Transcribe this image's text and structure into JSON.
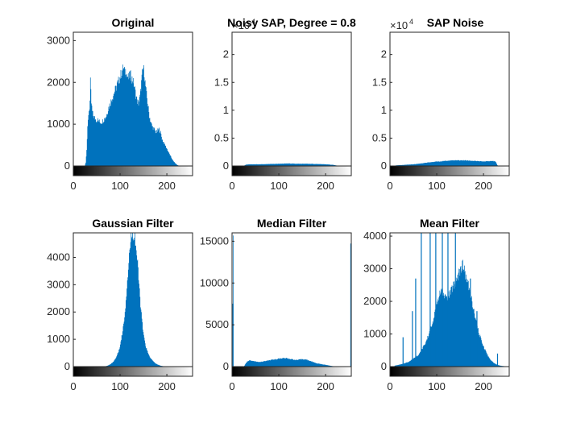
{
  "figure": {
    "background": "#ffffff",
    "bar_color": "#0072BD",
    "axis_color": "#262626"
  },
  "chart_data": [
    {
      "type": "bar",
      "title": "Original",
      "xlim": [
        0,
        255
      ],
      "ylim": [
        0,
        3200
      ],
      "xticks": [
        0,
        100,
        200
      ],
      "yticks": [
        0,
        1000,
        2000,
        3000
      ],
      "x_exponent": "",
      "y_exponent": "",
      "anchors": [
        [
          0,
          0
        ],
        [
          24,
          0
        ],
        [
          26,
          80
        ],
        [
          28,
          400
        ],
        [
          30,
          900
        ],
        [
          32,
          1250
        ],
        [
          34,
          1400
        ],
        [
          35,
          1550
        ],
        [
          36,
          2000
        ],
        [
          37,
          1750
        ],
        [
          38,
          1500
        ],
        [
          40,
          1300
        ],
        [
          42,
          1200
        ],
        [
          45,
          1150
        ],
        [
          48,
          1100
        ],
        [
          52,
          1100
        ],
        [
          56,
          1050
        ],
        [
          60,
          1050
        ],
        [
          64,
          1100
        ],
        [
          70,
          1200
        ],
        [
          75,
          1400
        ],
        [
          80,
          1550
        ],
        [
          85,
          1700
        ],
        [
          90,
          1850
        ],
        [
          95,
          2000
        ],
        [
          100,
          2150
        ],
        [
          103,
          2250
        ],
        [
          106,
          2350
        ],
        [
          109,
          2250
        ],
        [
          112,
          2300
        ],
        [
          115,
          2150
        ],
        [
          118,
          2100
        ],
        [
          121,
          2200
        ],
        [
          124,
          2100
        ],
        [
          127,
          2050
        ],
        [
          130,
          1900
        ],
        [
          133,
          1700
        ],
        [
          136,
          1550
        ],
        [
          139,
          1500
        ],
        [
          142,
          1650
        ],
        [
          145,
          2000
        ],
        [
          147,
          2200
        ],
        [
          149,
          2350
        ],
        [
          151,
          2250
        ],
        [
          153,
          2000
        ],
        [
          156,
          1700
        ],
        [
          159,
          1450
        ],
        [
          162,
          1200
        ],
        [
          165,
          1050
        ],
        [
          168,
          950
        ],
        [
          171,
          900
        ],
        [
          174,
          850
        ],
        [
          177,
          800
        ],
        [
          180,
          850
        ],
        [
          183,
          880
        ],
        [
          186,
          800
        ],
        [
          189,
          650
        ],
        [
          193,
          550
        ],
        [
          198,
          450
        ],
        [
          203,
          330
        ],
        [
          208,
          220
        ],
        [
          213,
          120
        ],
        [
          218,
          60
        ],
        [
          222,
          20
        ],
        [
          226,
          5
        ],
        [
          230,
          0
        ],
        [
          255,
          0
        ]
      ]
    },
    {
      "type": "bar",
      "title": "Noisy SAP, Degree = 0.8",
      "xlim": [
        0,
        255
      ],
      "ylim": [
        0,
        2.4
      ],
      "xticks": [
        0,
        100,
        200
      ],
      "yticks": [
        0,
        0.5,
        1,
        1.5,
        2
      ],
      "ytick_labels": [
        "0",
        "0.5",
        "1",
        "1.5",
        "2"
      ],
      "x_exponent": "",
      "y_exponent": "4",
      "anchors": [
        [
          0,
          0
        ],
        [
          22,
          0
        ],
        [
          26,
          0.01
        ],
        [
          30,
          0.025
        ],
        [
          40,
          0.03
        ],
        [
          60,
          0.03
        ],
        [
          80,
          0.035
        ],
        [
          100,
          0.04
        ],
        [
          120,
          0.045
        ],
        [
          140,
          0.04
        ],
        [
          160,
          0.04
        ],
        [
          180,
          0.035
        ],
        [
          200,
          0.03
        ],
        [
          215,
          0.02
        ],
        [
          225,
          0.005
        ],
        [
          230,
          0
        ],
        [
          255,
          0
        ]
      ]
    },
    {
      "type": "bar",
      "title": "SAP Noise",
      "xlim": [
        0,
        255
      ],
      "ylim": [
        0,
        2.4
      ],
      "xticks": [
        0,
        100,
        200
      ],
      "yticks": [
        0,
        0.5,
        1,
        1.5,
        2
      ],
      "ytick_labels": [
        "0",
        "0.5",
        "1",
        "1.5",
        "2"
      ],
      "x_exponent": "",
      "y_exponent": "4",
      "anchors": [
        [
          0,
          0
        ],
        [
          8,
          0
        ],
        [
          12,
          0.01
        ],
        [
          20,
          0.015
        ],
        [
          30,
          0.02
        ],
        [
          40,
          0.025
        ],
        [
          50,
          0.03
        ],
        [
          60,
          0.04
        ],
        [
          70,
          0.05
        ],
        [
          80,
          0.06
        ],
        [
          90,
          0.07
        ],
        [
          100,
          0.08
        ],
        [
          110,
          0.085
        ],
        [
          120,
          0.09
        ],
        [
          130,
          0.1
        ],
        [
          140,
          0.1
        ],
        [
          150,
          0.1
        ],
        [
          160,
          0.1
        ],
        [
          170,
          0.095
        ],
        [
          180,
          0.09
        ],
        [
          190,
          0.085
        ],
        [
          200,
          0.08
        ],
        [
          210,
          0.085
        ],
        [
          218,
          0.09
        ],
        [
          225,
          0.08
        ],
        [
          230,
          0
        ],
        [
          255,
          0
        ]
      ]
    },
    {
      "type": "bar",
      "title": "Gaussian Filter",
      "xlim": [
        0,
        255
      ],
      "ylim": [
        0,
        4900
      ],
      "xticks": [
        0,
        100,
        200
      ],
      "yticks": [
        0,
        1000,
        2000,
        3000,
        4000
      ],
      "x_exponent": "",
      "y_exponent": "",
      "anchors": [
        [
          0,
          0
        ],
        [
          60,
          0
        ],
        [
          70,
          20
        ],
        [
          75,
          50
        ],
        [
          80,
          100
        ],
        [
          85,
          180
        ],
        [
          90,
          300
        ],
        [
          95,
          500
        ],
        [
          100,
          800
        ],
        [
          105,
          1300
        ],
        [
          110,
          2000
        ],
        [
          113,
          2700
        ],
        [
          116,
          3400
        ],
        [
          119,
          4100
        ],
        [
          122,
          4600
        ],
        [
          125,
          4900
        ],
        [
          128,
          4900
        ],
        [
          131,
          4750
        ],
        [
          134,
          4300
        ],
        [
          137,
          3700
        ],
        [
          140,
          3000
        ],
        [
          143,
          2300
        ],
        [
          146,
          1700
        ],
        [
          150,
          1100
        ],
        [
          155,
          700
        ],
        [
          160,
          450
        ],
        [
          165,
          300
        ],
        [
          170,
          200
        ],
        [
          175,
          120
        ],
        [
          180,
          70
        ],
        [
          185,
          40
        ],
        [
          190,
          20
        ],
        [
          195,
          8
        ],
        [
          200,
          0
        ],
        [
          255,
          0
        ]
      ]
    },
    {
      "type": "bar",
      "title": "Median Filter",
      "xlim": [
        0,
        255
      ],
      "ylim": [
        0,
        16000
      ],
      "xticks": [
        0,
        100,
        200
      ],
      "yticks": [
        0,
        5000,
        10000,
        15000
      ],
      "x_exponent": "",
      "y_exponent": "",
      "anchors": [
        [
          0,
          0
        ],
        [
          2,
          15000
        ],
        [
          3,
          0
        ],
        [
          25,
          0
        ],
        [
          28,
          300
        ],
        [
          32,
          600
        ],
        [
          36,
          750
        ],
        [
          40,
          700
        ],
        [
          45,
          650
        ],
        [
          50,
          600
        ],
        [
          55,
          550
        ],
        [
          60,
          550
        ],
        [
          65,
          600
        ],
        [
          70,
          650
        ],
        [
          75,
          700
        ],
        [
          80,
          750
        ],
        [
          85,
          800
        ],
        [
          90,
          850
        ],
        [
          95,
          900
        ],
        [
          100,
          950
        ],
        [
          105,
          1000
        ],
        [
          110,
          1000
        ],
        [
          115,
          1000
        ],
        [
          120,
          950
        ],
        [
          125,
          900
        ],
        [
          130,
          850
        ],
        [
          135,
          800
        ],
        [
          140,
          800
        ],
        [
          145,
          850
        ],
        [
          150,
          900
        ],
        [
          155,
          850
        ],
        [
          160,
          800
        ],
        [
          165,
          700
        ],
        [
          170,
          600
        ],
        [
          175,
          500
        ],
        [
          180,
          400
        ],
        [
          185,
          350
        ],
        [
          190,
          300
        ],
        [
          195,
          250
        ],
        [
          200,
          200
        ],
        [
          205,
          150
        ],
        [
          210,
          100
        ],
        [
          215,
          60
        ],
        [
          220,
          30
        ],
        [
          225,
          10
        ],
        [
          230,
          0
        ],
        [
          252,
          0
        ],
        [
          253,
          15000
        ],
        [
          254,
          0
        ],
        [
          255,
          0
        ]
      ]
    },
    {
      "type": "bar",
      "title": "Mean Filter",
      "xlim": [
        0,
        255
      ],
      "ylim": [
        0,
        4100
      ],
      "xticks": [
        0,
        100,
        200
      ],
      "yticks": [
        0,
        1000,
        2000,
        3000,
        4000
      ],
      "x_exponent": "",
      "y_exponent": "",
      "anchors": [
        [
          0,
          0
        ],
        [
          8,
          0
        ],
        [
          10,
          30
        ],
        [
          20,
          60
        ],
        [
          30,
          100
        ],
        [
          40,
          150
        ],
        [
          50,
          250
        ],
        [
          55,
          300
        ],
        [
          60,
          350
        ],
        [
          65,
          450
        ],
        [
          70,
          600
        ],
        [
          75,
          700
        ],
        [
          80,
          900
        ],
        [
          85,
          1100
        ],
        [
          90,
          1300
        ],
        [
          95,
          1600
        ],
        [
          100,
          1900
        ],
        [
          105,
          2200
        ],
        [
          110,
          2300
        ],
        [
          115,
          2200
        ],
        [
          120,
          2100
        ],
        [
          125,
          2200
        ],
        [
          130,
          2300
        ],
        [
          135,
          2500
        ],
        [
          140,
          2600
        ],
        [
          145,
          2800
        ],
        [
          150,
          3000
        ],
        [
          155,
          3100
        ],
        [
          160,
          2900
        ],
        [
          165,
          2600
        ],
        [
          170,
          2300
        ],
        [
          175,
          2000
        ],
        [
          180,
          1600
        ],
        [
          185,
          1300
        ],
        [
          190,
          1000
        ],
        [
          195,
          800
        ],
        [
          200,
          600
        ],
        [
          205,
          450
        ],
        [
          210,
          300
        ],
        [
          215,
          200
        ],
        [
          220,
          130
        ],
        [
          225,
          80
        ],
        [
          230,
          50
        ],
        [
          235,
          30
        ],
        [
          240,
          20
        ],
        [
          245,
          10
        ],
        [
          250,
          5
        ],
        [
          255,
          0
        ]
      ],
      "spikes": [
        [
          28,
          900
        ],
        [
          48,
          1700
        ],
        [
          55,
          2700
        ],
        [
          67,
          4100
        ],
        [
          86,
          4100
        ],
        [
          98,
          4100
        ],
        [
          112,
          4100
        ],
        [
          124,
          4100
        ],
        [
          140,
          4100
        ],
        [
          156,
          2900
        ],
        [
          172,
          2700
        ],
        [
          186,
          1700
        ],
        [
          230,
          400
        ]
      ]
    }
  ]
}
